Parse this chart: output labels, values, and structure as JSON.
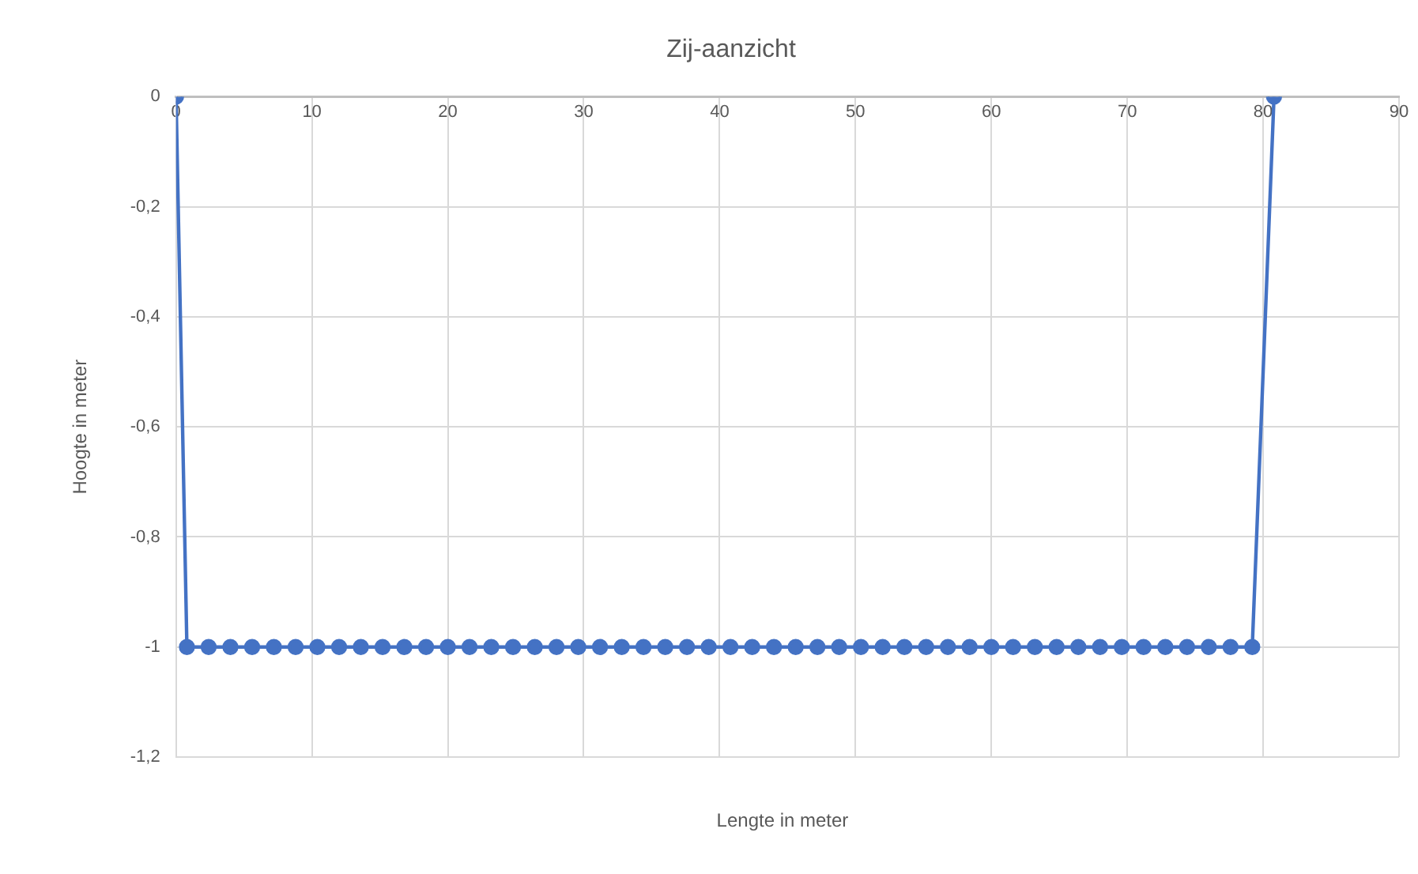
{
  "chart_data": {
    "type": "line",
    "title": "Zij-aanzicht",
    "xlabel": "Lengte in meter",
    "ylabel": "Hoogte in meter",
    "x": [
      0,
      0.8,
      2.4,
      4,
      5.6,
      7.2,
      8.8,
      10.4,
      12,
      13.6,
      15.2,
      16.8,
      18.4,
      20,
      21.6,
      23.2,
      24.8,
      26.4,
      28,
      29.6,
      31.2,
      32.8,
      34.4,
      36,
      37.6,
      39.2,
      40.8,
      42.4,
      44,
      45.6,
      47.2,
      48.8,
      50.4,
      52,
      53.6,
      55.2,
      56.8,
      58.4,
      60,
      61.6,
      63.2,
      64.8,
      66.4,
      68,
      69.6,
      71.2,
      72.8,
      74.4,
      76,
      77.6,
      79.2,
      80.8
    ],
    "series": [
      {
        "color": "#4472c4",
        "values": [
          0,
          -1,
          -1,
          -1,
          -1,
          -1,
          -1,
          -1,
          -1,
          -1,
          -1,
          -1,
          -1,
          -1,
          -1,
          -1,
          -1,
          -1,
          -1,
          -1,
          -1,
          -1,
          -1,
          -1,
          -1,
          -1,
          -1,
          -1,
          -1,
          -1,
          -1,
          -1,
          -1,
          -1,
          -1,
          -1,
          -1,
          -1,
          -1,
          -1,
          -1,
          -1,
          -1,
          -1,
          -1,
          -1,
          -1,
          -1,
          -1,
          -1,
          -1,
          0
        ]
      }
    ],
    "xlim": [
      0,
      90
    ],
    "xticks": [
      0,
      10,
      20,
      30,
      40,
      50,
      60,
      70,
      80,
      90
    ],
    "ylim": [
      -1.2,
      0
    ],
    "yticks": [
      {
        "value": -1.2,
        "label": "-1,2"
      },
      -1,
      {
        "value": -0.8,
        "label": "-0,8"
      },
      {
        "value": -0.6,
        "label": "-0,6"
      },
      {
        "value": -0.4,
        "label": "-0,4"
      },
      {
        "value": -0.2,
        "label": "-0,2"
      },
      0
    ],
    "grid": true,
    "legend": false,
    "marker": "circle",
    "line_style": "solid"
  }
}
